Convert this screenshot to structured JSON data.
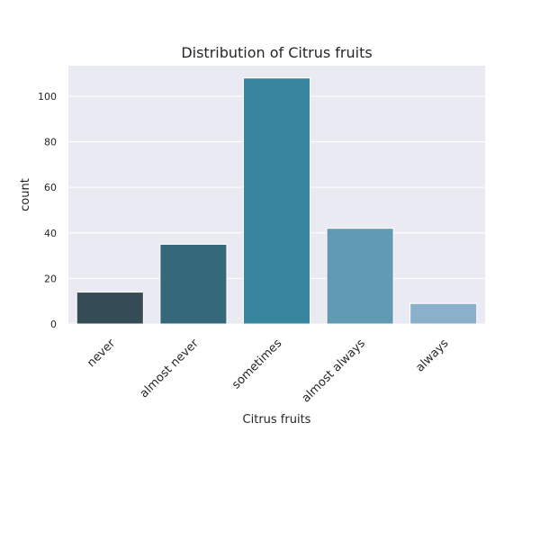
{
  "chart_data": {
    "type": "bar",
    "title": "Distribution of Citrus fruits",
    "xlabel": "Citrus fruits",
    "ylabel": "count",
    "categories": [
      "never",
      "almost never",
      "sometimes",
      "almost always",
      "always"
    ],
    "values": [
      14,
      35,
      108,
      42,
      9
    ],
    "colors": [
      "#354c57",
      "#35687a",
      "#3885a0",
      "#619ab3",
      "#8bb0cb"
    ],
    "ylim": [
      0,
      113.4
    ],
    "yticks": [
      0,
      20,
      40,
      60,
      80,
      100
    ],
    "grid": true,
    "background": "#eaeaf2"
  }
}
